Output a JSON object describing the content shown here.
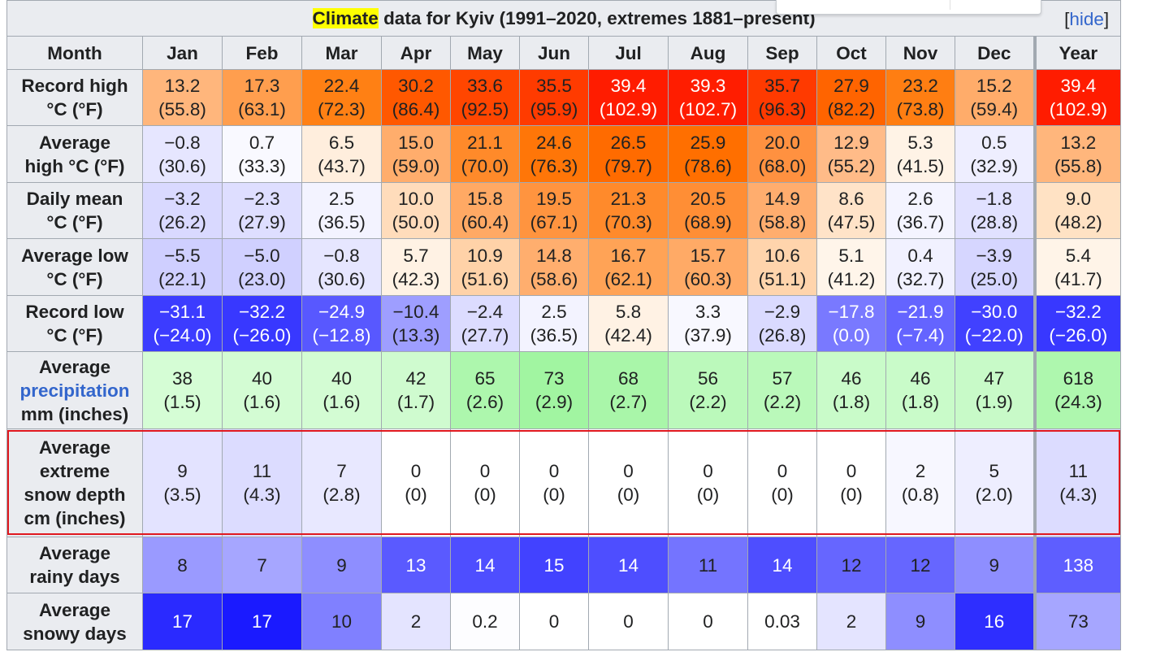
{
  "caption": {
    "highlight": "Climate",
    "title": " data for Kyiv (1991–2020, extremes 1881–present)",
    "hide_open": "[",
    "hide_label": "hide",
    "hide_close": "]"
  },
  "header": {
    "month": "Month",
    "months": [
      "Jan",
      "Feb",
      "Mar",
      "Apr",
      "May",
      "Jun",
      "Jul",
      "Aug",
      "Sep",
      "Oct",
      "Nov",
      "Dec"
    ],
    "year": "Year"
  },
  "rows": {
    "record_high": {
      "label_1": "Record high",
      "label_2": "°C (°F)",
      "cells": [
        {
          "v": "13.2",
          "s": "(55.8)",
          "bg": "#ffb67c"
        },
        {
          "v": "17.3",
          "s": "(63.1)",
          "bg": "#ff9e4e"
        },
        {
          "v": "22.4",
          "s": "(72.3)",
          "bg": "#ff8014"
        },
        {
          "v": "30.2",
          "s": "(86.4)",
          "bg": "#ff5800"
        },
        {
          "v": "33.6",
          "s": "(92.5)",
          "bg": "#ff4600"
        },
        {
          "v": "35.5",
          "s": "(95.9)",
          "bg": "#ff3b00"
        },
        {
          "v": "39.4",
          "s": "(102.9)",
          "bg": "#ff1c00",
          "w": true
        },
        {
          "v": "39.3",
          "s": "(102.7)",
          "bg": "#ff1d00",
          "w": true
        },
        {
          "v": "35.7",
          "s": "(96.3)",
          "bg": "#ff3a00"
        },
        {
          "v": "27.9",
          "s": "(82.2)",
          "bg": "#ff6400"
        },
        {
          "v": "23.2",
          "s": "(73.8)",
          "bg": "#ff7e12"
        },
        {
          "v": "15.2",
          "s": "(59.4)",
          "bg": "#ffac6a"
        }
      ],
      "year": {
        "v": "39.4",
        "s": "(102.9)",
        "bg": "#ff1c00",
        "w": true
      }
    },
    "avg_high": {
      "label_1": "Average",
      "label_2": "high °C (°F)",
      "cells": [
        {
          "v": "−0.8",
          "s": "(30.6)",
          "bg": "#e6e6ff"
        },
        {
          "v": "0.7",
          "s": "(33.3)",
          "bg": "#f9f9ff"
        },
        {
          "v": "6.5",
          "s": "(43.7)",
          "bg": "#ffeedd"
        },
        {
          "v": "15.0",
          "s": "(59.0)",
          "bg": "#ffad6c"
        },
        {
          "v": "21.1",
          "s": "(70.0)",
          "bg": "#ff8a2a"
        },
        {
          "v": "24.6",
          "s": "(76.3)",
          "bg": "#ff7608"
        },
        {
          "v": "26.5",
          "s": "(79.7)",
          "bg": "#ff6b00"
        },
        {
          "v": "25.9",
          "s": "(78.6)",
          "bg": "#ff6f00"
        },
        {
          "v": "20.0",
          "s": "(68.0)",
          "bg": "#ff9140"
        },
        {
          "v": "12.9",
          "s": "(55.2)",
          "bg": "#ffbb88"
        },
        {
          "v": "5.3",
          "s": "(41.5)",
          "bg": "#fff3e6"
        },
        {
          "v": "0.5",
          "s": "(32.9)",
          "bg": "#eeeeff"
        }
      ],
      "year": {
        "v": "13.2",
        "s": "(55.8)",
        "bg": "#ffb67c"
      }
    },
    "daily_mean": {
      "label_1": "Daily mean",
      "label_2": "°C (°F)",
      "cells": [
        {
          "v": "−3.2",
          "s": "(26.2)",
          "bg": "#d9d9ff"
        },
        {
          "v": "−2.3",
          "s": "(27.9)",
          "bg": "#dedeff"
        },
        {
          "v": "2.5",
          "s": "(36.5)",
          "bg": "#f3f3ff"
        },
        {
          "v": "10.0",
          "s": "(50.0)",
          "bg": "#ffdcbb"
        },
        {
          "v": "15.8",
          "s": "(60.4)",
          "bg": "#ffa964"
        },
        {
          "v": "19.5",
          "s": "(67.1)",
          "bg": "#ff943f"
        },
        {
          "v": "21.3",
          "s": "(70.3)",
          "bg": "#ff8a2b"
        },
        {
          "v": "20.5",
          "s": "(68.9)",
          "bg": "#ff8e35"
        },
        {
          "v": "14.9",
          "s": "(58.8)",
          "bg": "#ffad6e"
        },
        {
          "v": "8.6",
          "s": "(47.5)",
          "bg": "#ffe3c8"
        },
        {
          "v": "2.6",
          "s": "(36.7)",
          "bg": "#f4f4ff"
        },
        {
          "v": "−1.8",
          "s": "(28.8)",
          "bg": "#e1e1ff"
        }
      ],
      "year": {
        "v": "9.0",
        "s": "(48.2)",
        "bg": "#ffe2c4"
      }
    },
    "avg_low": {
      "label_1": "Average low",
      "label_2": "°C (°F)",
      "cells": [
        {
          "v": "−5.5",
          "s": "(22.1)",
          "bg": "#cfcfff"
        },
        {
          "v": "−5.0",
          "s": "(23.0)",
          "bg": "#d0d0ff"
        },
        {
          "v": "−0.8",
          "s": "(30.6)",
          "bg": "#e6e6ff"
        },
        {
          "v": "5.7",
          "s": "(42.3)",
          "bg": "#fff2e4"
        },
        {
          "v": "10.9",
          "s": "(51.6)",
          "bg": "#ffd2a8"
        },
        {
          "v": "14.8",
          "s": "(58.6)",
          "bg": "#ffae6e"
        },
        {
          "v": "16.7",
          "s": "(62.1)",
          "bg": "#ffa356"
        },
        {
          "v": "15.7",
          "s": "(60.3)",
          "bg": "#ffaa66"
        },
        {
          "v": "10.6",
          "s": "(51.1)",
          "bg": "#ffd4ac"
        },
        {
          "v": "5.1",
          "s": "(41.2)",
          "bg": "#fff5ea"
        },
        {
          "v": "0.4",
          "s": "(32.7)",
          "bg": "#f1f1ff"
        },
        {
          "v": "−3.9",
          "s": "(25.0)",
          "bg": "#d6d6ff"
        }
      ],
      "year": {
        "v": "5.4",
        "s": "(41.7)",
        "bg": "#fff4e8"
      }
    },
    "record_low": {
      "label_1": "Record low",
      "label_2": "°C (°F)",
      "cells": [
        {
          "v": "−31.1",
          "s": "(−24.0)",
          "bg": "#3c3cff",
          "w": true
        },
        {
          "v": "−32.2",
          "s": "(−26.0)",
          "bg": "#3838ff",
          "w": true
        },
        {
          "v": "−24.9",
          "s": "(−12.8)",
          "bg": "#5858ff",
          "w": true
        },
        {
          "v": "−10.4",
          "s": "(13.3)",
          "bg": "#9e9eff"
        },
        {
          "v": "−2.4",
          "s": "(27.7)",
          "bg": "#dcdcff"
        },
        {
          "v": "2.5",
          "s": "(36.5)",
          "bg": "#f3f3ff"
        },
        {
          "v": "5.8",
          "s": "(42.4)",
          "bg": "#fff2e4"
        },
        {
          "v": "3.3",
          "s": "(37.9)",
          "bg": "#f8f8ff"
        },
        {
          "v": "−2.9",
          "s": "(26.8)",
          "bg": "#dadaff"
        },
        {
          "v": "−17.8",
          "s": "(0.0)",
          "bg": "#7979ff",
          "w": true
        },
        {
          "v": "−21.9",
          "s": "(−7.4)",
          "bg": "#6464ff",
          "w": true
        },
        {
          "v": "−30.0",
          "s": "(−22.0)",
          "bg": "#4141ff",
          "w": true
        }
      ],
      "year": {
        "v": "−32.2",
        "s": "(−26.0)",
        "bg": "#3838ff",
        "w": true
      }
    },
    "precip": {
      "label_1": "Average",
      "label_link": "precipitation",
      "label_3": "mm (inches)",
      "cells": [
        {
          "v": "38",
          "s": "(1.5)",
          "bg": "#d5fdd5"
        },
        {
          "v": "40",
          "s": "(1.6)",
          "bg": "#d3fcd3"
        },
        {
          "v": "40",
          "s": "(1.6)",
          "bg": "#d3fcd3"
        },
        {
          "v": "42",
          "s": "(1.7)",
          "bg": "#cffbcf"
        },
        {
          "v": "65",
          "s": "(2.6)",
          "bg": "#adf7ad"
        },
        {
          "v": "73",
          "s": "(2.9)",
          "bg": "#a1f5a1"
        },
        {
          "v": "68",
          "s": "(2.7)",
          "bg": "#a9f6a9"
        },
        {
          "v": "56",
          "s": "(2.2)",
          "bg": "#bbf9bb"
        },
        {
          "v": "57",
          "s": "(2.2)",
          "bg": "#baf9ba"
        },
        {
          "v": "46",
          "s": "(1.8)",
          "bg": "#c9fbc9"
        },
        {
          "v": "46",
          "s": "(1.8)",
          "bg": "#c9fbc9"
        },
        {
          "v": "47",
          "s": "(1.9)",
          "bg": "#c8fac8"
        }
      ],
      "year": {
        "v": "618",
        "s": "(24.3)",
        "bg": "#aef7ae"
      }
    },
    "snow_depth": {
      "label_1": "Average",
      "label_2": "extreme",
      "label_3": "snow depth",
      "label_4": "cm (inches)",
      "cells": [
        {
          "v": "9",
          "s": "(3.5)",
          "bg": "#e3e3ff"
        },
        {
          "v": "11",
          "s": "(4.3)",
          "bg": "#dcdcff"
        },
        {
          "v": "7",
          "s": "(2.8)",
          "bg": "#e8e8ff"
        },
        {
          "v": "0",
          "s": "(0)",
          "bg": "#ffffff"
        },
        {
          "v": "0",
          "s": "(0)",
          "bg": "#ffffff"
        },
        {
          "v": "0",
          "s": "(0)",
          "bg": "#ffffff"
        },
        {
          "v": "0",
          "s": "(0)",
          "bg": "#ffffff"
        },
        {
          "v": "0",
          "s": "(0)",
          "bg": "#ffffff"
        },
        {
          "v": "0",
          "s": "(0)",
          "bg": "#ffffff"
        },
        {
          "v": "0",
          "s": "(0)",
          "bg": "#ffffff"
        },
        {
          "v": "2",
          "s": "(0.8)",
          "bg": "#f7f7ff"
        },
        {
          "v": "5",
          "s": "(2.0)",
          "bg": "#eeeeff"
        }
      ],
      "year": {
        "v": "11",
        "s": "(4.3)",
        "bg": "#dcdcff"
      }
    },
    "rainy_days": {
      "label_1": "Average",
      "label_2": "rainy days",
      "cells": [
        {
          "v": "8",
          "bg": "#9a9aff"
        },
        {
          "v": "7",
          "bg": "#a6a6ff"
        },
        {
          "v": "9",
          "bg": "#8e8eff"
        },
        {
          "v": "13",
          "bg": "#5a5aff",
          "w": true
        },
        {
          "v": "14",
          "bg": "#4e4eff",
          "w": true
        },
        {
          "v": "15",
          "bg": "#4242ff",
          "w": true
        },
        {
          "v": "14",
          "bg": "#4e4eff",
          "w": true
        },
        {
          "v": "11",
          "bg": "#7474ff"
        },
        {
          "v": "14",
          "bg": "#4e4eff",
          "w": true
        },
        {
          "v": "12",
          "bg": "#6666ff"
        },
        {
          "v": "12",
          "bg": "#6666ff"
        },
        {
          "v": "9",
          "bg": "#8e8eff"
        }
      ],
      "year": {
        "v": "138",
        "bg": "#5e5eff",
        "w": true
      }
    },
    "snowy_days": {
      "label_1": "Average",
      "label_2": "snowy days",
      "cells": [
        {
          "v": "17",
          "bg": "#2a2aff",
          "w": true
        },
        {
          "v": "17",
          "bg": "#1a1aff",
          "w": true
        },
        {
          "v": "10",
          "bg": "#8080ff"
        },
        {
          "v": "2",
          "bg": "#e4e4ff"
        },
        {
          "v": "0.2",
          "bg": "#fdfdff"
        },
        {
          "v": "0",
          "bg": "#ffffff"
        },
        {
          "v": "0",
          "bg": "#ffffff"
        },
        {
          "v": "0",
          "bg": "#ffffff"
        },
        {
          "v": "0.03",
          "bg": "#ffffff"
        },
        {
          "v": "2",
          "bg": "#e4e4ff"
        },
        {
          "v": "9",
          "bg": "#8e8eff"
        },
        {
          "v": "16",
          "bg": "#2e2eff",
          "w": true
        }
      ],
      "year": {
        "v": "73",
        "bg": "#a6a6ff"
      }
    }
  },
  "colors": {
    "header_bg": "#eaecf0",
    "border": "#a2a9b1",
    "link": "#3366cc",
    "selection_outline": "#e0181f",
    "caption_highlight": "#ffff00"
  }
}
